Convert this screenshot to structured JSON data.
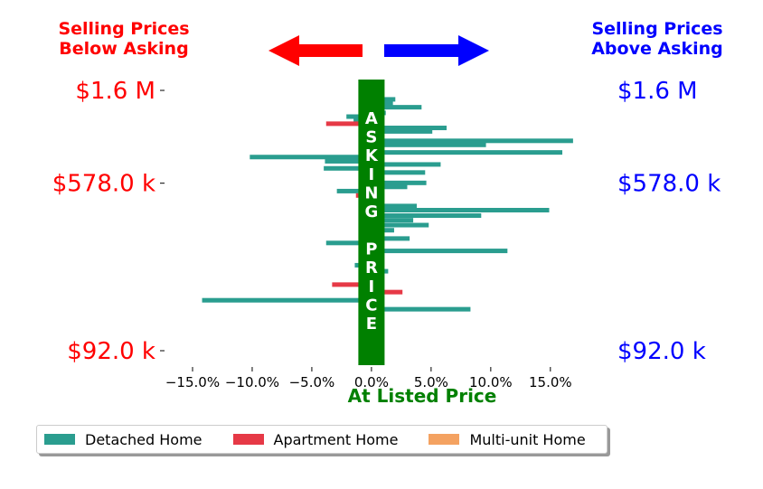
{
  "header": {
    "left_caption_line1": "Selling Prices",
    "left_caption_line2": "Below Asking",
    "right_caption_line1": "Selling Prices",
    "right_caption_line2": "Above Asking"
  },
  "center_band_text": "ASKING PRICE",
  "colors": {
    "detached": "#2a9d8f",
    "apartment": "#e63946",
    "multi_unit": "#f4a261",
    "band": "#008000",
    "left": "#ff0000",
    "right": "#0000ff",
    "xlabel": "#008000"
  },
  "chart_data": {
    "type": "bar",
    "orientation": "horizontal",
    "xlabel": "At Listed Price",
    "xlim": [
      -17.5,
      18.5
    ],
    "xticks": [
      -15,
      -10,
      -5,
      0,
      5,
      10,
      15
    ],
    "xtick_labels": [
      "−15.0%",
      "−10.0%",
      "−5.0%",
      "0.0%",
      "5.0%",
      "10.0%",
      "15.0%"
    ],
    "y_tick_labels": [
      "$1.6 M",
      "$578.0 k",
      "$92.0 k"
    ],
    "y_right_labels": [
      "$1.6 M",
      "$578.0 k",
      "$92.0 k"
    ],
    "y_scale": "log",
    "y_tick_values": [
      1600000,
      578000,
      92000
    ],
    "legend": {
      "placement": "bottom",
      "entries": [
        "Detached Home",
        "Apartment Home",
        "Multi-unit Home"
      ]
    },
    "series": [
      {
        "name": "Detached Home",
        "points": [
          {
            "price": 1540000,
            "change": 1.0
          },
          {
            "price": 1450000,
            "change": 2.0
          },
          {
            "price": 1390000,
            "change": 1.8
          },
          {
            "price": 1330000,
            "change": 4.2
          },
          {
            "price": 1250000,
            "change": 1.2
          },
          {
            "price": 1200000,
            "change": -2.1
          },
          {
            "price": 1160000,
            "change": -1.5
          },
          {
            "price": 1060000,
            "change": 6.3
          },
          {
            "price": 1020000,
            "change": 5.1
          },
          {
            "price": 960000,
            "change": 1.0
          },
          {
            "price": 920000,
            "change": 16.9
          },
          {
            "price": 880000,
            "change": 9.6
          },
          {
            "price": 835000,
            "change": -1.0
          },
          {
            "price": 810000,
            "change": 16.0
          },
          {
            "price": 770000,
            "change": -10.2
          },
          {
            "price": 735000,
            "change": -3.9
          },
          {
            "price": 710000,
            "change": 5.8
          },
          {
            "price": 680000,
            "change": -4.0
          },
          {
            "price": 650000,
            "change": 4.5
          },
          {
            "price": 605000,
            "change": 1.0
          },
          {
            "price": 580000,
            "change": 4.6
          },
          {
            "price": 555000,
            "change": 3.0
          },
          {
            "price": 530000,
            "change": -2.9
          },
          {
            "price": 480000,
            "change": 1.0
          },
          {
            "price": 450000,
            "change": 3.8
          },
          {
            "price": 430000,
            "change": 14.9
          },
          {
            "price": 405000,
            "change": 9.2
          },
          {
            "price": 385000,
            "change": 3.5
          },
          {
            "price": 365000,
            "change": 4.8
          },
          {
            "price": 345000,
            "change": 1.9
          },
          {
            "price": 315000,
            "change": 3.2
          },
          {
            "price": 300000,
            "change": -3.8
          },
          {
            "price": 275000,
            "change": 11.4
          },
          {
            "price": 255000,
            "change": 1.0
          },
          {
            "price": 235000,
            "change": -1.4
          },
          {
            "price": 220000,
            "change": 1.4
          },
          {
            "price": 202000,
            "change": 1.0
          },
          {
            "price": 160000,
            "change": -14.2
          },
          {
            "price": 145000,
            "change": 8.3
          }
        ]
      },
      {
        "name": "Apartment Home",
        "points": [
          {
            "price": 1110000,
            "change": -3.8
          },
          {
            "price": 505000,
            "change": -1.3
          },
          {
            "price": 190000,
            "change": -3.3
          },
          {
            "price": 175000,
            "change": 2.6
          }
        ]
      },
      {
        "name": "Multi-unit Home",
        "points": []
      }
    ]
  }
}
